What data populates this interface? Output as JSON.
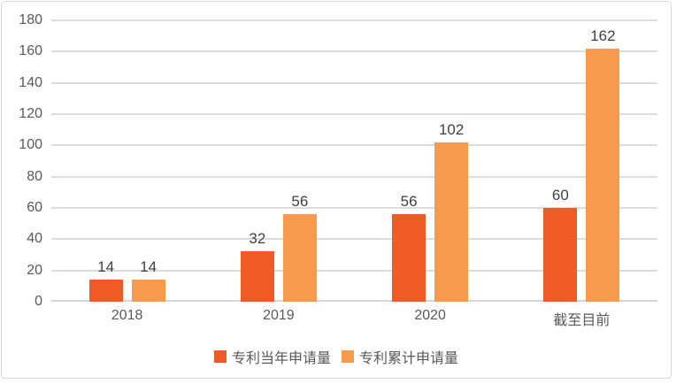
{
  "chart_data": {
    "type": "bar",
    "categories": [
      "2018",
      "2019",
      "2020",
      "截至目前"
    ],
    "series": [
      {
        "name": "专利当年申请量",
        "color": "#F05A25",
        "values": [
          14,
          32,
          56,
          60
        ]
      },
      {
        "name": "专利累计申请量",
        "color": "#F79A4D",
        "values": [
          14,
          56,
          102,
          162
        ]
      }
    ],
    "title": "",
    "xlabel": "",
    "ylabel": "",
    "ylim": [
      0,
      180
    ],
    "ytick_step": 20,
    "grid": true,
    "data_labels": true,
    "legend_position": "bottom"
  },
  "style": {
    "background": "#FFFFFF",
    "border_color": "#DBDBDB",
    "grid_color": "#DCDCDC",
    "axis_line_color": "#D6D6D6",
    "tick_text_color": "#595959",
    "value_label_color": "#3F3F3F"
  }
}
